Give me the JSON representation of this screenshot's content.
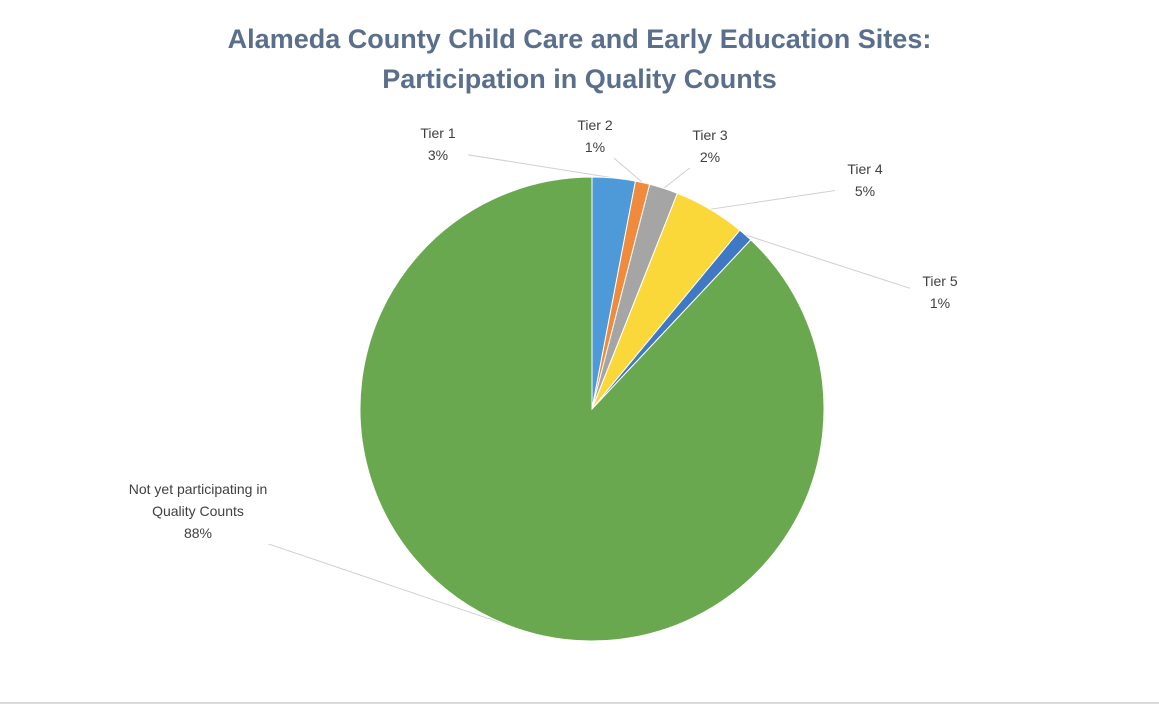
{
  "chart_data": {
    "type": "pie",
    "title_line1": "Alameda County Child Care and Early Education Sites:",
    "title_line2": "Participation in Quality Counts",
    "slices": [
      {
        "label": "Tier 1",
        "value": 3,
        "value_label": "3%",
        "color": "#4e9ad8"
      },
      {
        "label": "Tier 2",
        "value": 1,
        "value_label": "1%",
        "color": "#f08a3c"
      },
      {
        "label": "Tier 3",
        "value": 2,
        "value_label": "2%",
        "color": "#a5a5a5"
      },
      {
        "label": "Tier 4",
        "value": 5,
        "value_label": "5%",
        "color": "#fbd83a"
      },
      {
        "label": "Tier 5",
        "value": 1,
        "value_label": "1%",
        "color": "#3f78c4"
      },
      {
        "label": "Not yet participating in Quality Counts",
        "label_line1": "Not yet participating in",
        "label_line2": "Quality Counts",
        "value": 88,
        "value_label": "88%",
        "color": "#6aa84f"
      }
    ],
    "start_angle_deg": 0,
    "direction": "clockwise",
    "legend": "none"
  }
}
